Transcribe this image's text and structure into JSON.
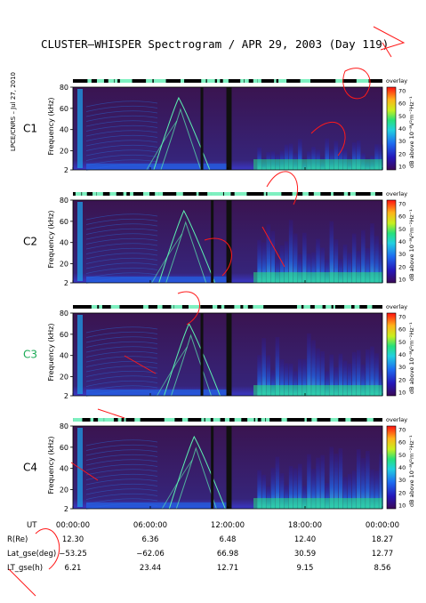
{
  "title": "CLUSTER–WHISPER Spectrogram / APR 29, 2003 (Day 119)",
  "side_credit": "LPCE/CNRS – Jul 27, 2010",
  "panels": [
    {
      "name": "C1",
      "color": "#000000"
    },
    {
      "name": "C2",
      "color": "#000000"
    },
    {
      "name": "C3",
      "color": "#1aaa55"
    },
    {
      "name": "C4",
      "color": "#000000"
    }
  ],
  "status_label": "overlay",
  "y_axis_label": "Frequency (kHz)",
  "colorbar_label": "dB above 10⁻⁸V²m⁻²Hz⁻¹",
  "orbit_table": {
    "rows": [
      {
        "label": "UT",
        "values": [
          "00:00:00",
          "06:00:00",
          "12:00:00",
          "18:00:00",
          "00:00:00"
        ]
      },
      {
        "label": "R(Re)",
        "values": [
          "12.30",
          "6.36",
          "6.48",
          "12.40",
          "18.27"
        ]
      },
      {
        "label": "Lat_gse(deg)",
        "values": [
          "−53.25",
          "−62.06",
          "66.98",
          "30.59",
          "12.77"
        ]
      },
      {
        "label": "LT_gse(h)",
        "values": [
          "6.21",
          "23.44",
          "12.71",
          "9.15",
          "8.56"
        ]
      }
    ]
  },
  "chart_data": {
    "type": "heatmap",
    "title": "CLUSTER–WHISPER Spectrogram / APR 29, 2003 (Day 119)",
    "x_axis": {
      "label": "UT",
      "ticks": [
        "00:00:00",
        "06:00:00",
        "12:00:00",
        "18:00:00",
        "00:00:00"
      ],
      "range_hours": [
        0,
        24
      ]
    },
    "y_axis": {
      "label": "Frequency (kHz)",
      "ticks": [
        2,
        20,
        40,
        60,
        80
      ],
      "range": [
        2,
        80
      ]
    },
    "colorbar": {
      "label": "dB above 10⁻⁸V²m⁻²Hz⁻¹",
      "ticks": [
        10,
        20,
        30,
        40,
        50,
        60,
        70
      ],
      "range": [
        10,
        70
      ]
    },
    "series": [
      {
        "name": "C1"
      },
      {
        "name": "C2"
      },
      {
        "name": "C3"
      },
      {
        "name": "C4"
      }
    ],
    "grid": false,
    "colors": {
      "background": "#3a1450",
      "low": "#2b1a8f",
      "mid": "#1f7fe0",
      "high": "#26e07a",
      "peak": "#f2f21e",
      "annotation": "#ff0000"
    }
  }
}
